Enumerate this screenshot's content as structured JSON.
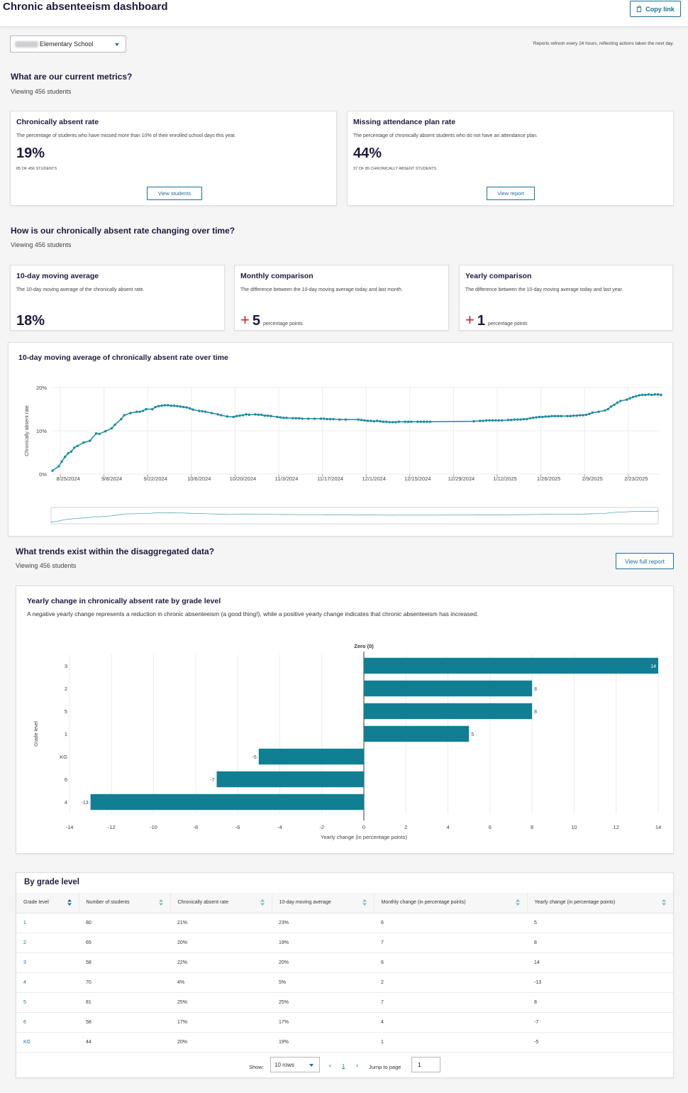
{
  "header": {
    "title": "Chronic absenteeism dashboard",
    "copy_link": "Copy link"
  },
  "school_select": {
    "value": "Elementary School"
  },
  "refresh_note": "Reports refresh every 24 hours, reflecting actions taken the next day.",
  "current_metrics": {
    "title": "What are our current metrics?",
    "viewing": "Viewing 456 students",
    "cards": [
      {
        "title": "Chronically absent rate",
        "description": "The percentage of students who have missed more than 10% of their enrolled school days this year.",
        "value": "19%",
        "sub": "85 of 456 students",
        "button": "View students"
      },
      {
        "title": "Missing attendance plan rate",
        "description": "The percentage of chronically absent students who do not have an attendance plan.",
        "value": "44%",
        "sub": "37 of 85 chronically absent students",
        "button": "View report"
      }
    ]
  },
  "trend": {
    "title": "How is our chronically absent rate changing over time?",
    "viewing": "Viewing 456 students",
    "cards": [
      {
        "title": "10-day moving average",
        "description": "The 10-day moving average of the chronically absent rate.",
        "value": "18%"
      },
      {
        "title": "Monthly comparison",
        "description": "The difference between the 10-day moving average today and last month.",
        "sign": "+",
        "value": "5",
        "unit": "percentage points"
      },
      {
        "title": "Yearly comparison",
        "description": "The difference between the 10-day moving average today and last year.",
        "sign": "+",
        "value": "1",
        "unit": "percentage points"
      }
    ]
  },
  "disaggregated": {
    "title": "What trends exist within the disaggregated data?",
    "viewing": "Viewing 456 students",
    "button": "View full report"
  },
  "chart_data": [
    {
      "type": "line",
      "title": "10-day moving average of chronically absent rate over time",
      "ylabel": "Chronically absent rate",
      "xlabel": "",
      "ylim": [
        0,
        20
      ],
      "y_ticks": [
        "0%",
        "10%",
        "20%"
      ],
      "x_ticks": [
        "8/25/2024",
        "9/8/2024",
        "9/22/2024",
        "10/6/2024",
        "10/20/2024",
        "11/3/2024",
        "11/17/2024",
        "12/1/2024",
        "12/15/2024",
        "12/29/2024",
        "1/12/2025",
        "1/26/2025",
        "2/9/2025",
        "2/23/2025"
      ],
      "x_range": [
        "8/20/2024",
        "3/3/2025"
      ],
      "grid": true,
      "color": "#1a8a9e",
      "points": [
        [
          "8/20/2024",
          0.8
        ],
        [
          "8/22/2024",
          1.8
        ],
        [
          "8/23/2024",
          2.9
        ],
        [
          "8/24/2024",
          4.0
        ],
        [
          "8/25/2024",
          4.8
        ],
        [
          "8/26/2024",
          5.2
        ],
        [
          "8/27/2024",
          6.1
        ],
        [
          "8/28/2024",
          6.5
        ],
        [
          "8/30/2024",
          7.3
        ],
        [
          "9/1/2024",
          7.7
        ],
        [
          "9/3/2024",
          9.4
        ],
        [
          "9/4/2024",
          9.3
        ],
        [
          "9/6/2024",
          9.9
        ],
        [
          "9/8/2024",
          10.6
        ],
        [
          "9/9/2024",
          11.4
        ],
        [
          "9/11/2024",
          12.7
        ],
        [
          "9/12/2024",
          13.6
        ],
        [
          "9/14/2024",
          14.1
        ],
        [
          "9/16/2024",
          14.4
        ],
        [
          "9/17/2024",
          14.4
        ],
        [
          "9/18/2024",
          14.6
        ],
        [
          "9/19/2024",
          15.0
        ],
        [
          "9/21/2024",
          15.0
        ],
        [
          "9/22/2024",
          15.5
        ],
        [
          "9/23/2024",
          15.7
        ],
        [
          "9/24/2024",
          15.8
        ],
        [
          "9/25/2024",
          15.9
        ],
        [
          "9/26/2024",
          15.9
        ],
        [
          "9/27/2024",
          15.8
        ],
        [
          "9/28/2024",
          15.8
        ],
        [
          "9/29/2024",
          15.7
        ],
        [
          "9/30/2024",
          15.6
        ],
        [
          "10/1/2024",
          15.5
        ],
        [
          "10/2/2024",
          15.4
        ],
        [
          "10/3/2024",
          15.2
        ],
        [
          "10/4/2024",
          14.9
        ],
        [
          "10/6/2024",
          14.6
        ],
        [
          "10/7/2024",
          14.5
        ],
        [
          "10/8/2024",
          14.4
        ],
        [
          "10/10/2024",
          14.1
        ],
        [
          "10/12/2024",
          13.8
        ],
        [
          "10/13/2024",
          13.6
        ],
        [
          "10/15/2024",
          13.3
        ],
        [
          "10/17/2024",
          13.2
        ],
        [
          "10/18/2024",
          13.4
        ],
        [
          "10/19/2024",
          13.5
        ],
        [
          "10/20/2024",
          13.6
        ],
        [
          "10/21/2024",
          13.8
        ],
        [
          "10/22/2024",
          13.7
        ],
        [
          "10/24/2024",
          13.8
        ],
        [
          "10/25/2024",
          13.7
        ],
        [
          "10/26/2024",
          13.7
        ],
        [
          "10/27/2024",
          13.5
        ],
        [
          "10/28/2024",
          13.5
        ],
        [
          "10/29/2024",
          13.4
        ],
        [
          "10/31/2024",
          13.2
        ],
        [
          "11/1/2024",
          13.1
        ],
        [
          "11/2/2024",
          13.0
        ],
        [
          "11/3/2024",
          13.0
        ],
        [
          "11/5/2024",
          12.9
        ],
        [
          "11/6/2024",
          12.9
        ],
        [
          "11/7/2024",
          12.9
        ],
        [
          "11/8/2024",
          12.8
        ],
        [
          "11/10/2024",
          12.8
        ],
        [
          "11/12/2024",
          12.8
        ],
        [
          "11/14/2024",
          12.8
        ],
        [
          "11/15/2024",
          12.8
        ],
        [
          "11/16/2024",
          12.7
        ],
        [
          "11/17/2024",
          12.7
        ],
        [
          "11/18/2024",
          12.7
        ],
        [
          "11/20/2024",
          12.6
        ],
        [
          "11/22/2024",
          12.6
        ],
        [
          "11/26/2024",
          12.6
        ],
        [
          "11/27/2024",
          12.5
        ],
        [
          "11/28/2024",
          12.4
        ],
        [
          "11/29/2024",
          12.3
        ],
        [
          "11/30/2024",
          12.3
        ],
        [
          "12/1/2024",
          12.2
        ],
        [
          "12/2/2024",
          12.3
        ],
        [
          "12/3/2024",
          12.2
        ],
        [
          "12/4/2024",
          12.1
        ],
        [
          "12/5/2024",
          12.1
        ],
        [
          "12/6/2024",
          12.0
        ],
        [
          "12/7/2024",
          12.0
        ],
        [
          "12/8/2024",
          12.0
        ],
        [
          "12/9/2024",
          12.1
        ],
        [
          "12/11/2024",
          12.1
        ],
        [
          "12/12/2024",
          12.1
        ],
        [
          "12/13/2024",
          12.1
        ],
        [
          "12/15/2024",
          12.1
        ],
        [
          "12/16/2024",
          12.1
        ],
        [
          "12/17/2024",
          12.1
        ],
        [
          "12/18/2024",
          12.1
        ],
        [
          "12/19/2024",
          12.1
        ],
        [
          "1/2/2025",
          12.2
        ],
        [
          "1/4/2025",
          12.3
        ],
        [
          "1/5/2025",
          12.3
        ],
        [
          "1/6/2025",
          12.4
        ],
        [
          "1/7/2025",
          12.4
        ],
        [
          "1/8/2025",
          12.4
        ],
        [
          "1/9/2025",
          12.4
        ],
        [
          "1/10/2025",
          12.4
        ],
        [
          "1/11/2025",
          12.4
        ],
        [
          "1/13/2025",
          12.5
        ],
        [
          "1/14/2025",
          12.5
        ],
        [
          "1/15/2025",
          12.6
        ],
        [
          "1/16/2025",
          12.6
        ],
        [
          "1/17/2025",
          12.6
        ],
        [
          "1/18/2025",
          12.7
        ],
        [
          "1/19/2025",
          12.7
        ],
        [
          "1/20/2025",
          12.9
        ],
        [
          "1/21/2025",
          13.0
        ],
        [
          "1/22/2025",
          13.1
        ],
        [
          "1/23/2025",
          13.2
        ],
        [
          "1/24/2025",
          13.2
        ],
        [
          "1/25/2025",
          13.3
        ],
        [
          "1/26/2025",
          13.3
        ],
        [
          "1/27/2025",
          13.4
        ],
        [
          "1/28/2025",
          13.4
        ],
        [
          "1/29/2025",
          13.4
        ],
        [
          "1/30/2025",
          13.4
        ],
        [
          "2/1/2025",
          13.4
        ],
        [
          "2/2/2025",
          13.4
        ],
        [
          "2/3/2025",
          13.5
        ],
        [
          "2/4/2025",
          13.5
        ],
        [
          "2/5/2025",
          13.6
        ],
        [
          "2/6/2025",
          13.6
        ],
        [
          "2/7/2025",
          13.7
        ],
        [
          "2/8/2025",
          13.9
        ],
        [
          "2/9/2025",
          14.2
        ],
        [
          "2/11/2025",
          14.4
        ],
        [
          "2/13/2025",
          14.7
        ],
        [
          "2/14/2025",
          15.0
        ],
        [
          "2/15/2025",
          15.6
        ],
        [
          "2/16/2025",
          16.0
        ],
        [
          "2/17/2025",
          16.5
        ],
        [
          "2/18/2025",
          16.9
        ],
        [
          "2/20/2025",
          17.2
        ],
        [
          "2/21/2025",
          17.5
        ],
        [
          "2/22/2025",
          17.8
        ],
        [
          "2/23/2025",
          18.0
        ],
        [
          "2/24/2025",
          18.2
        ],
        [
          "2/25/2025",
          18.3
        ],
        [
          "2/26/2025",
          18.3
        ],
        [
          "2/27/2025",
          18.4
        ],
        [
          "2/28/2025",
          18.3
        ],
        [
          "3/1/2025",
          18.4
        ],
        [
          "3/2/2025",
          18.4
        ],
        [
          "3/3/2025",
          18.3
        ]
      ]
    },
    {
      "type": "bar",
      "orientation": "horizontal",
      "title": "Yearly change in chronically absent rate by grade level",
      "subtitle": "A negative yearly change represents a reduction in chronic absenteeism (a good thing!), while a positive yearly change indicates that chronic absenteeism has increased.",
      "xlabel": "Yearly change (in percentage points)",
      "ylabel": "Grade level",
      "reference_label": "Zero (0)",
      "xlim": [
        -14,
        14
      ],
      "x_ticks": [
        "-14",
        "-12",
        "-10",
        "-8",
        "-6",
        "-4",
        "-2",
        "0",
        "2",
        "4",
        "6",
        "8",
        "10",
        "12",
        "14"
      ],
      "categories": [
        "3",
        "2",
        "5",
        "1",
        "KG",
        "6",
        "4"
      ],
      "values": [
        14,
        8,
        8,
        5,
        -5,
        -7,
        -13
      ],
      "value_labels": [
        "14",
        "8",
        "8",
        "5",
        "-5",
        "-7",
        "-13"
      ],
      "grid": true,
      "color": "#107f94"
    }
  ],
  "table": {
    "title": "By grade level",
    "columns": [
      "Grade level",
      "Number of students",
      "Chronically absent rate",
      "10-day moving average",
      "Monthly change (in percentage points)",
      "Yearly change (in percentage points)"
    ],
    "rows": [
      [
        "1",
        "80",
        "21%",
        "23%",
        "6",
        "5"
      ],
      [
        "2",
        "65",
        "20%",
        "19%",
        "7",
        "8"
      ],
      [
        "3",
        "58",
        "22%",
        "20%",
        "6",
        "14"
      ],
      [
        "4",
        "70",
        "4%",
        "5%",
        "2",
        "-13"
      ],
      [
        "5",
        "81",
        "25%",
        "25%",
        "7",
        "8"
      ],
      [
        "6",
        "58",
        "17%",
        "17%",
        "4",
        "-7"
      ],
      [
        "KG",
        "44",
        "20%",
        "19%",
        "1",
        "-5"
      ]
    ],
    "pager": {
      "show_label": "Show:",
      "rows_value": "10 rows",
      "page": "1",
      "jump_label": "Jump to page",
      "jump_value": "1"
    }
  }
}
